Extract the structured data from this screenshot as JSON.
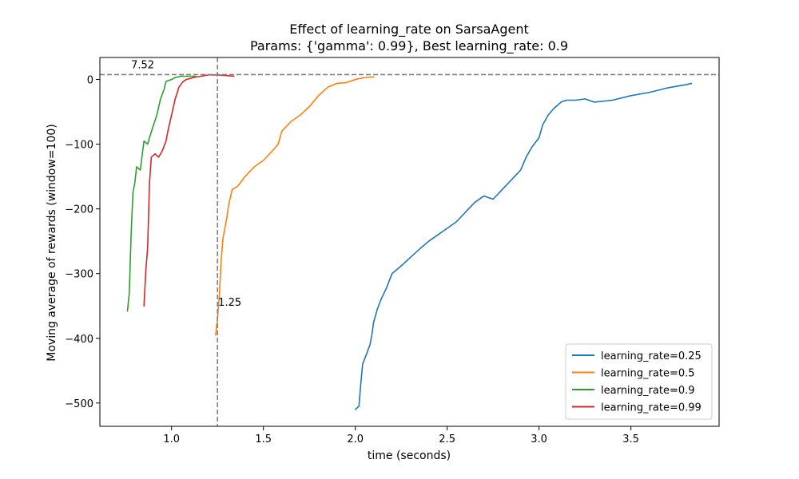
{
  "chart_data": {
    "type": "line",
    "title": "Effect of learning_rate on SarsaAgent",
    "subtitle": "Params: {'gamma': 0.99}, Best learning_rate: 0.9",
    "xlabel": "time (seconds)",
    "ylabel": "Moving average of rewards (window=100)",
    "xlim": [
      0.61,
      3.98
    ],
    "ylim": [
      -536,
      34
    ],
    "xticks": [
      1.0,
      1.5,
      2.0,
      2.5,
      3.0,
      3.5
    ],
    "xtick_labels": [
      "1.0",
      "1.5",
      "2.0",
      "2.5",
      "3.0",
      "3.5"
    ],
    "yticks": [
      -500,
      -400,
      -300,
      -200,
      -100,
      0
    ],
    "ytick_labels": [
      "−500",
      "−400",
      "−300",
      "−200",
      "−100",
      "0"
    ],
    "grid": false,
    "legend_position": "lower-right",
    "reference_lines": {
      "horizontal": {
        "y": 7.52,
        "label": "7.52",
        "color": "#808080",
        "style": "dashed"
      },
      "vertical": {
        "x": 1.25,
        "label": "1.25",
        "color": "#808080",
        "style": "dashed"
      }
    },
    "series": [
      {
        "name": "learning_rate=0.25",
        "color": "#1f77b4",
        "points": [
          [
            2.0,
            -510
          ],
          [
            2.02,
            -505
          ],
          [
            2.03,
            -470
          ],
          [
            2.04,
            -440
          ],
          [
            2.06,
            -425
          ],
          [
            2.08,
            -410
          ],
          [
            2.09,
            -395
          ],
          [
            2.1,
            -375
          ],
          [
            2.12,
            -355
          ],
          [
            2.14,
            -340
          ],
          [
            2.17,
            -322
          ],
          [
            2.2,
            -300
          ],
          [
            2.25,
            -288
          ],
          [
            2.3,
            -275
          ],
          [
            2.35,
            -262
          ],
          [
            2.4,
            -250
          ],
          [
            2.45,
            -240
          ],
          [
            2.5,
            -230
          ],
          [
            2.55,
            -220
          ],
          [
            2.6,
            -205
          ],
          [
            2.65,
            -190
          ],
          [
            2.7,
            -180
          ],
          [
            2.75,
            -185
          ],
          [
            2.8,
            -170
          ],
          [
            2.85,
            -155
          ],
          [
            2.9,
            -140
          ],
          [
            2.93,
            -120
          ],
          [
            2.96,
            -105
          ],
          [
            3.0,
            -90
          ],
          [
            3.02,
            -70
          ],
          [
            3.05,
            -55
          ],
          [
            3.08,
            -45
          ],
          [
            3.12,
            -35
          ],
          [
            3.15,
            -32
          ],
          [
            3.2,
            -32
          ],
          [
            3.25,
            -30
          ],
          [
            3.3,
            -35
          ],
          [
            3.4,
            -32
          ],
          [
            3.5,
            -25
          ],
          [
            3.6,
            -20
          ],
          [
            3.7,
            -13
          ],
          [
            3.8,
            -8
          ],
          [
            3.83,
            -6
          ]
        ]
      },
      {
        "name": "learning_rate=0.5",
        "color": "#ff7f0e",
        "points": [
          [
            1.24,
            -395
          ],
          [
            1.25,
            -370
          ],
          [
            1.26,
            -335
          ],
          [
            1.27,
            -280
          ],
          [
            1.28,
            -245
          ],
          [
            1.3,
            -215
          ],
          [
            1.31,
            -195
          ],
          [
            1.33,
            -170
          ],
          [
            1.36,
            -165
          ],
          [
            1.4,
            -150
          ],
          [
            1.45,
            -135
          ],
          [
            1.5,
            -125
          ],
          [
            1.55,
            -110
          ],
          [
            1.58,
            -100
          ],
          [
            1.6,
            -80
          ],
          [
            1.65,
            -65
          ],
          [
            1.7,
            -55
          ],
          [
            1.75,
            -42
          ],
          [
            1.8,
            -25
          ],
          [
            1.85,
            -12
          ],
          [
            1.9,
            -6
          ],
          [
            1.95,
            -5
          ],
          [
            2.0,
            0
          ],
          [
            2.05,
            3
          ],
          [
            2.1,
            4
          ]
        ]
      },
      {
        "name": "learning_rate=0.9",
        "color": "#2ca02c",
        "points": [
          [
            0.76,
            -358
          ],
          [
            0.77,
            -330
          ],
          [
            0.78,
            -240
          ],
          [
            0.79,
            -175
          ],
          [
            0.8,
            -160
          ],
          [
            0.81,
            -135
          ],
          [
            0.83,
            -140
          ],
          [
            0.85,
            -95
          ],
          [
            0.87,
            -100
          ],
          [
            0.88,
            -90
          ],
          [
            0.9,
            -72
          ],
          [
            0.92,
            -55
          ],
          [
            0.94,
            -30
          ],
          [
            0.96,
            -15
          ],
          [
            0.97,
            -3
          ],
          [
            1.0,
            0
          ],
          [
            1.02,
            3
          ],
          [
            1.05,
            5
          ],
          [
            1.1,
            5
          ],
          [
            1.13,
            5
          ]
        ]
      },
      {
        "name": "learning_rate=0.99",
        "color": "#d62728",
        "points": [
          [
            0.85,
            -350
          ],
          [
            0.86,
            -295
          ],
          [
            0.87,
            -260
          ],
          [
            0.88,
            -160
          ],
          [
            0.89,
            -120
          ],
          [
            0.91,
            -115
          ],
          [
            0.93,
            -120
          ],
          [
            0.95,
            -110
          ],
          [
            0.97,
            -95
          ],
          [
            0.98,
            -80
          ],
          [
            1.0,
            -55
          ],
          [
            1.02,
            -30
          ],
          [
            1.04,
            -12
          ],
          [
            1.06,
            -4
          ],
          [
            1.08,
            0
          ],
          [
            1.12,
            3
          ],
          [
            1.16,
            5
          ],
          [
            1.2,
            7
          ],
          [
            1.25,
            7
          ],
          [
            1.3,
            6
          ],
          [
            1.34,
            5
          ]
        ]
      }
    ]
  }
}
